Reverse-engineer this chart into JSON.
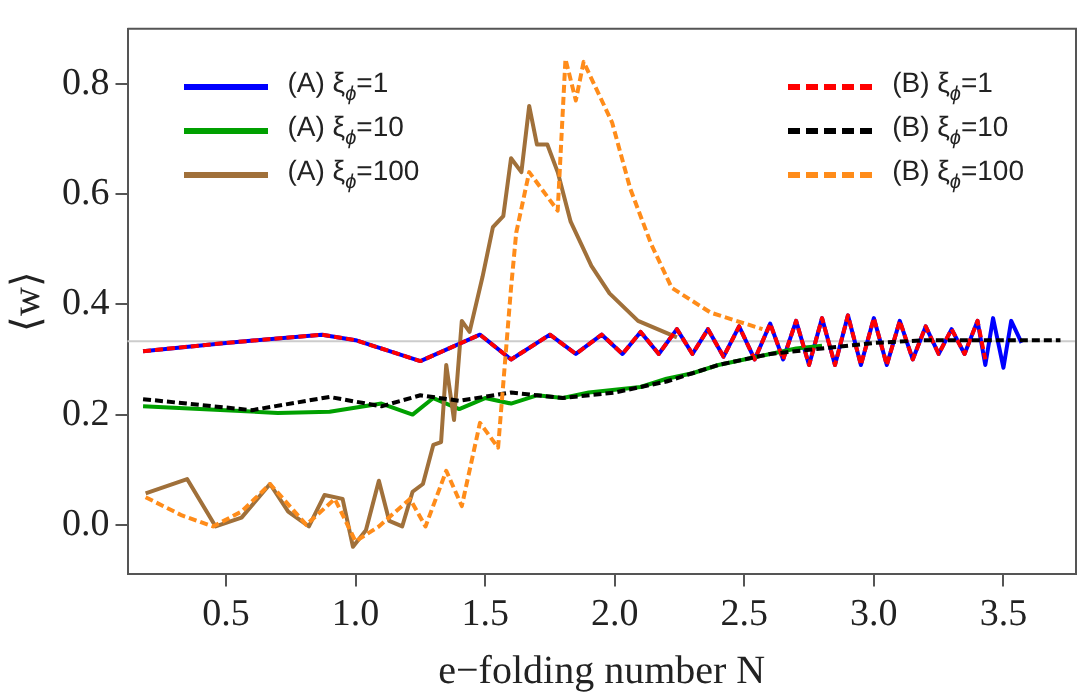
{
  "chart_data": {
    "type": "line",
    "xlabel": "e−folding number N",
    "ylabel": "⟨w⟩",
    "xlim": [
      0.12,
      3.78
    ],
    "ylim": [
      -0.09,
      0.9
    ],
    "xticks": [
      0.5,
      {
        "value": 1,
        "label": "1.0"
      },
      1.5,
      {
        "value": 2,
        "label": "2.0"
      },
      2.5,
      {
        "value": 3,
        "label": "3.0"
      },
      3.5
    ],
    "yticks": [
      {
        "value": 0,
        "label": "0.0"
      },
      0.2,
      0.4,
      0.6,
      0.8
    ],
    "grid": false,
    "legend": "top",
    "marker": "none",
    "ref_lines": [
      {
        "axis": "y",
        "value": 0.333,
        "color": "#cccccc"
      }
    ],
    "series": [
      {
        "name": "(A) ξ$_{ϕ}$=1",
        "color": "#0000ff",
        "line_style": "solid",
        "x": [
          0.18,
          0.5,
          0.87,
          1.0,
          1.25,
          1.48,
          1.6,
          1.75,
          1.85,
          1.95,
          2.03,
          2.1,
          2.17,
          2.24,
          2.3,
          2.36,
          2.42,
          2.48,
          2.54,
          2.6,
          2.65,
          2.7,
          2.75,
          2.8,
          2.85,
          2.9,
          2.95,
          3.0,
          3.05,
          3.1,
          3.15,
          3.2,
          3.25,
          3.3,
          3.35,
          3.4,
          3.43,
          3.46,
          3.5,
          3.53,
          3.57
        ],
        "values": [
          0.315,
          0.33,
          0.345,
          0.335,
          0.297,
          0.345,
          0.3,
          0.345,
          0.31,
          0.345,
          0.31,
          0.35,
          0.31,
          0.355,
          0.31,
          0.355,
          0.305,
          0.36,
          0.3,
          0.365,
          0.3,
          0.37,
          0.29,
          0.375,
          0.29,
          0.38,
          0.29,
          0.375,
          0.29,
          0.37,
          0.3,
          0.36,
          0.31,
          0.355,
          0.31,
          0.37,
          0.29,
          0.375,
          0.285,
          0.37,
          0.33
        ]
      },
      {
        "name": "(A) ξ$_{ϕ}$=10",
        "color": "#00a000",
        "line_style": "solid",
        "x": [
          0.18,
          0.7,
          0.9,
          1.1,
          1.22,
          1.3,
          1.4,
          1.5,
          1.6,
          1.7,
          1.8,
          1.9,
          2.0,
          2.1,
          2.2,
          2.3,
          2.4,
          2.5,
          2.6,
          2.7,
          2.8
        ],
        "values": [
          0.215,
          0.203,
          0.205,
          0.22,
          0.2,
          0.23,
          0.21,
          0.23,
          0.22,
          0.235,
          0.23,
          0.24,
          0.245,
          0.25,
          0.265,
          0.275,
          0.29,
          0.3,
          0.31,
          0.32,
          0.325
        ]
      },
      {
        "name": "(A) ξ$_{ϕ}$=100",
        "color": "#a0703a",
        "line_style": "solid",
        "x": [
          0.19,
          0.35,
          0.46,
          0.56,
          0.67,
          0.74,
          0.82,
          0.88,
          0.95,
          0.99,
          1.04,
          1.09,
          1.13,
          1.18,
          1.22,
          1.26,
          1.3,
          1.33,
          1.35,
          1.38,
          1.41,
          1.44,
          1.49,
          1.53,
          1.57,
          1.6,
          1.64,
          1.67,
          1.7,
          1.74,
          1.78,
          1.83,
          1.91,
          1.98,
          2.09,
          2.24
        ],
        "values": [
          0.057,
          0.083,
          -0.003,
          0.013,
          0.074,
          0.024,
          -0.003,
          0.054,
          0.047,
          -0.04,
          -0.01,
          0.08,
          0.007,
          -0.003,
          0.06,
          0.074,
          0.145,
          0.15,
          0.29,
          0.19,
          0.37,
          0.35,
          0.45,
          0.54,
          0.56,
          0.665,
          0.64,
          0.76,
          0.69,
          0.69,
          0.64,
          0.55,
          0.47,
          0.42,
          0.37,
          0.34
        ]
      },
      {
        "name": "(B) ξ$_{ϕ}$=1",
        "color": "#ff0000",
        "line_style": "dashed",
        "x": [
          0.18,
          0.5,
          0.87,
          1.0,
          1.25,
          1.48,
          1.6,
          1.75,
          1.85,
          1.95,
          2.03,
          2.1,
          2.17,
          2.24,
          2.3,
          2.36,
          2.42,
          2.48,
          2.54,
          2.6,
          2.65,
          2.7,
          2.75,
          2.8,
          2.85,
          2.9,
          2.95,
          3.0,
          3.05,
          3.1,
          3.15,
          3.2,
          3.25,
          3.3,
          3.35,
          3.4,
          3.43
        ],
        "values": [
          0.315,
          0.33,
          0.345,
          0.335,
          0.297,
          0.345,
          0.3,
          0.345,
          0.31,
          0.345,
          0.31,
          0.35,
          0.31,
          0.355,
          0.31,
          0.355,
          0.305,
          0.36,
          0.3,
          0.365,
          0.3,
          0.37,
          0.29,
          0.375,
          0.29,
          0.38,
          0.29,
          0.375,
          0.29,
          0.37,
          0.3,
          0.36,
          0.31,
          0.355,
          0.31,
          0.37,
          0.3
        ]
      },
      {
        "name": "(B) ξ$_{ϕ}$=10",
        "color": "#000000",
        "line_style": "dashed",
        "x": [
          0.18,
          0.6,
          0.9,
          1.1,
          1.25,
          1.4,
          1.6,
          1.8,
          2.0,
          2.2,
          2.4,
          2.6,
          2.8,
          3.0,
          3.2,
          3.4,
          3.6,
          3.72
        ],
        "values": [
          0.228,
          0.208,
          0.232,
          0.215,
          0.235,
          0.225,
          0.24,
          0.23,
          0.24,
          0.26,
          0.29,
          0.31,
          0.32,
          0.33,
          0.335,
          0.335,
          0.335,
          0.335
        ]
      },
      {
        "name": "(B) ξ$_{ϕ}$=100",
        "color": "#ff8c1a",
        "line_style": "dashed",
        "x": [
          0.19,
          0.33,
          0.45,
          0.56,
          0.67,
          0.81,
          0.92,
          1.0,
          1.09,
          1.21,
          1.27,
          1.35,
          1.41,
          1.48,
          1.55,
          1.6,
          1.62,
          1.67,
          1.78,
          1.81,
          1.85,
          1.88,
          1.93,
          1.99,
          2.06,
          2.14,
          2.22,
          2.37,
          2.57
        ],
        "values": [
          0.05,
          0.017,
          -0.003,
          0.024,
          0.074,
          0.0,
          0.047,
          -0.03,
          -0.003,
          0.047,
          -0.003,
          0.098,
          0.034,
          0.185,
          0.14,
          0.43,
          0.53,
          0.64,
          0.57,
          0.845,
          0.77,
          0.84,
          0.79,
          0.73,
          0.61,
          0.51,
          0.43,
          0.385,
          0.355
        ]
      }
    ]
  }
}
